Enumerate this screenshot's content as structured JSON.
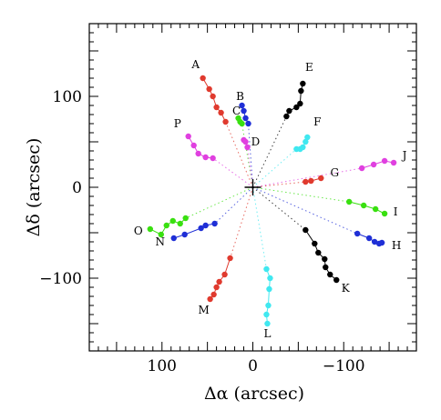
{
  "chart_data": {
    "type": "scatter",
    "title": "",
    "xlabel": "Δα (arcsec)",
    "ylabel": "Δδ (arcsec)",
    "xlim": [
      180,
      -180
    ],
    "ylim": [
      -180,
      180
    ],
    "x_ticks": [
      100,
      0,
      -100
    ],
    "x_tick_labels": [
      "100",
      "0",
      "−100"
    ],
    "y_ticks": [
      100,
      0,
      -100
    ],
    "y_tick_labels": [
      "100",
      "0",
      "−100"
    ],
    "grid": false,
    "legend": "none",
    "center_marker": {
      "x": 0,
      "y": 0,
      "symbol": "plus"
    },
    "series": [
      {
        "label": "A",
        "color": "#e03a2e",
        "label_pos": [
          63,
          135
        ],
        "points": [
          [
            55,
            120
          ],
          [
            48,
            108
          ],
          [
            44,
            100
          ],
          [
            40,
            88
          ],
          [
            35,
            82
          ],
          [
            30,
            72
          ]
        ]
      },
      {
        "label": "B",
        "color": "#1f2fd6",
        "label_pos": [
          14,
          100
        ],
        "points": [
          [
            12,
            90
          ],
          [
            10,
            84
          ],
          [
            8,
            76
          ],
          [
            5,
            70
          ]
        ]
      },
      {
        "label": "C",
        "color": "#39e010",
        "label_pos": [
          18,
          84
        ],
        "points": [
          [
            16,
            76
          ],
          [
            14,
            72
          ],
          [
            12,
            70
          ]
        ]
      },
      {
        "label": "D",
        "color": "#e040e0",
        "label_pos": [
          -3,
          50
        ],
        "points": [
          [
            10,
            52
          ],
          [
            8,
            50
          ],
          [
            6,
            44
          ]
        ]
      },
      {
        "label": "E",
        "color": "#000000",
        "label_pos": [
          -62,
          132
        ],
        "points": [
          [
            -55,
            114
          ],
          [
            -53,
            106
          ],
          [
            -52,
            92
          ],
          [
            -48,
            88
          ],
          [
            -40,
            84
          ],
          [
            -37,
            78
          ]
        ]
      },
      {
        "label": "F",
        "color": "#40e8f0",
        "label_pos": [
          -71,
          72
        ],
        "points": [
          [
            -60,
            55
          ],
          [
            -58,
            50
          ],
          [
            -55,
            44
          ],
          [
            -52,
            42
          ],
          [
            -48,
            42
          ]
        ]
      },
      {
        "label": "G",
        "color": "#e03a2e",
        "label_pos": [
          -90,
          16
        ],
        "points": [
          [
            -75,
            10
          ],
          [
            -64,
            7
          ],
          [
            -58,
            6
          ]
        ]
      },
      {
        "label": "J",
        "color": "#e040e0",
        "label_pos": [
          -167,
          35
        ],
        "points": [
          [
            -155,
            27
          ],
          [
            -145,
            29
          ],
          [
            -133,
            25
          ],
          [
            -120,
            21
          ]
        ]
      },
      {
        "label": "I",
        "color": "#39e010",
        "label_pos": [
          -157,
          -27
        ],
        "points": [
          [
            -145,
            -29
          ],
          [
            -135,
            -24
          ],
          [
            -122,
            -20
          ],
          [
            -106,
            -16
          ]
        ]
      },
      {
        "label": "H",
        "color": "#1f2fd6",
        "label_pos": [
          -158,
          -64
        ],
        "points": [
          [
            -142,
            -61
          ],
          [
            -139,
            -62
          ],
          [
            -134,
            -60
          ],
          [
            -128,
            -56
          ],
          [
            -115,
            -51
          ]
        ]
      },
      {
        "label": "K",
        "color": "#000000",
        "label_pos": [
          -102,
          -111
        ],
        "points": [
          [
            -92,
            -102
          ],
          [
            -85,
            -96
          ],
          [
            -80,
            -88
          ],
          [
            -79,
            -79
          ],
          [
            -72,
            -72
          ],
          [
            -68,
            -62
          ],
          [
            -58,
            -47
          ]
        ]
      },
      {
        "label": "L",
        "color": "#40e8f0",
        "label_pos": [
          -16,
          -161
        ],
        "points": [
          [
            -16,
            -150
          ],
          [
            -15,
            -140
          ],
          [
            -17,
            -130
          ],
          [
            -18,
            -112
          ],
          [
            -19,
            -100
          ],
          [
            -15,
            -90
          ]
        ]
      },
      {
        "label": "M",
        "color": "#e03a2e",
        "label_pos": [
          54,
          -135
        ],
        "points": [
          [
            47,
            -123
          ],
          [
            43,
            -118
          ],
          [
            40,
            -110
          ],
          [
            37,
            -104
          ],
          [
            31,
            -96
          ],
          [
            25,
            -78
          ]
        ]
      },
      {
        "label": "N",
        "color": "#1f2fd6",
        "label_pos": [
          102,
          -60
        ],
        "points": [
          [
            87,
            -56
          ],
          [
            75,
            -52
          ],
          [
            57,
            -45
          ],
          [
            52,
            -42
          ],
          [
            42,
            -40
          ]
        ]
      },
      {
        "label": "O",
        "color": "#39e010",
        "label_pos": [
          126,
          -48
        ],
        "points": [
          [
            113,
            -46
          ],
          [
            101,
            -52
          ],
          [
            95,
            -42
          ],
          [
            88,
            -37
          ],
          [
            80,
            -40
          ],
          [
            74,
            -34
          ]
        ]
      },
      {
        "label": "P",
        "color": "#e040e0",
        "label_pos": [
          83,
          70
        ],
        "points": [
          [
            71,
            56
          ],
          [
            65,
            46
          ],
          [
            60,
            37
          ],
          [
            52,
            33
          ],
          [
            44,
            32
          ]
        ]
      }
    ]
  }
}
